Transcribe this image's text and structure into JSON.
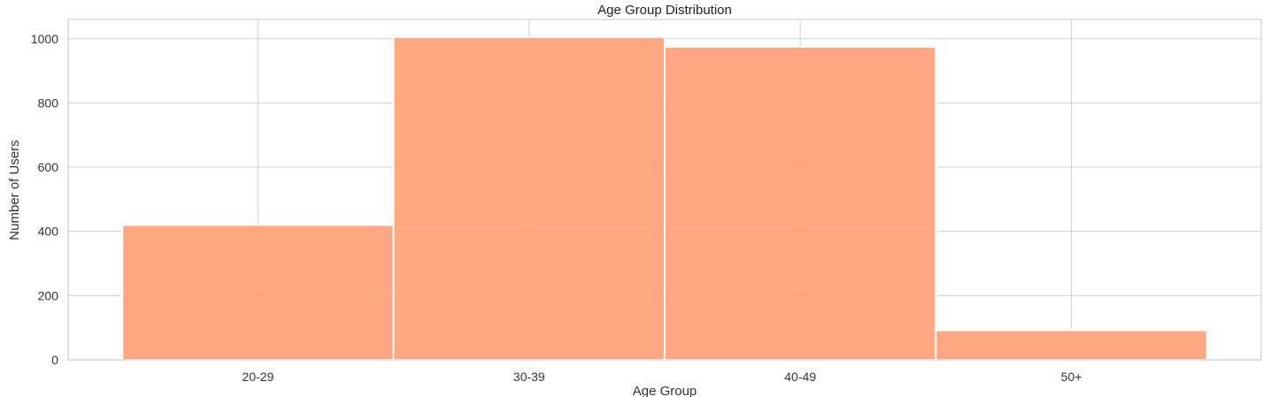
{
  "chart_data": {
    "type": "bar",
    "title": "Age Group Distribution",
    "xlabel": "Age Group",
    "ylabel": "Number of Users",
    "categories": [
      "20-29",
      "30-39",
      "40-49",
      "50+"
    ],
    "values": [
      420,
      1005,
      975,
      92
    ],
    "ylim": [
      0,
      1060
    ],
    "yticks": [
      0,
      200,
      400,
      600,
      800,
      1000
    ],
    "grid": true,
    "bar_color": "#ff9e78"
  }
}
